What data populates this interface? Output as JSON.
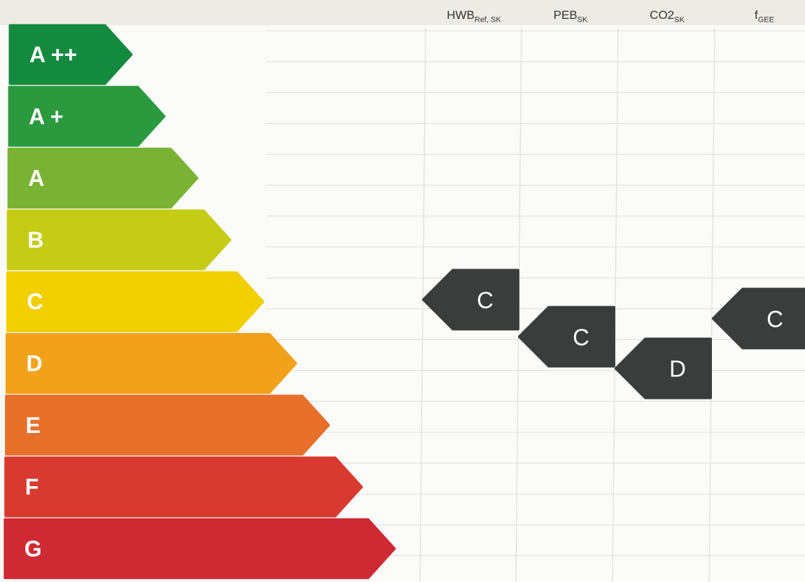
{
  "columns": [
    {
      "main": "HWB",
      "sub": "Ref, SK"
    },
    {
      "main": "PEB",
      "sub": "SK"
    },
    {
      "main": "CO2",
      "sub": "SK"
    },
    {
      "main": "f",
      "sub": "GEE"
    }
  ],
  "classes": [
    {
      "label": "A ++",
      "color": "#138a3d"
    },
    {
      "label": "A +",
      "color": "#2b9a3f"
    },
    {
      "label": "A",
      "color": "#7ab334"
    },
    {
      "label": "B",
      "color": "#c5cc15"
    },
    {
      "label": "C",
      "color": "#f2cf00"
    },
    {
      "label": "D",
      "color": "#f2a11a"
    },
    {
      "label": "E",
      "color": "#e8702b"
    },
    {
      "label": "F",
      "color": "#d93a2f"
    },
    {
      "label": "G",
      "color": "#cf2a34"
    }
  ],
  "ratings": [
    {
      "column": "HWB Ref, SK",
      "value": "C"
    },
    {
      "column": "PEB SK",
      "value": "C"
    },
    {
      "column": "CO2 SK",
      "value": "D"
    },
    {
      "column": "f GEE",
      "value": "C"
    }
  ],
  "marker_color": "#3b3d3d"
}
